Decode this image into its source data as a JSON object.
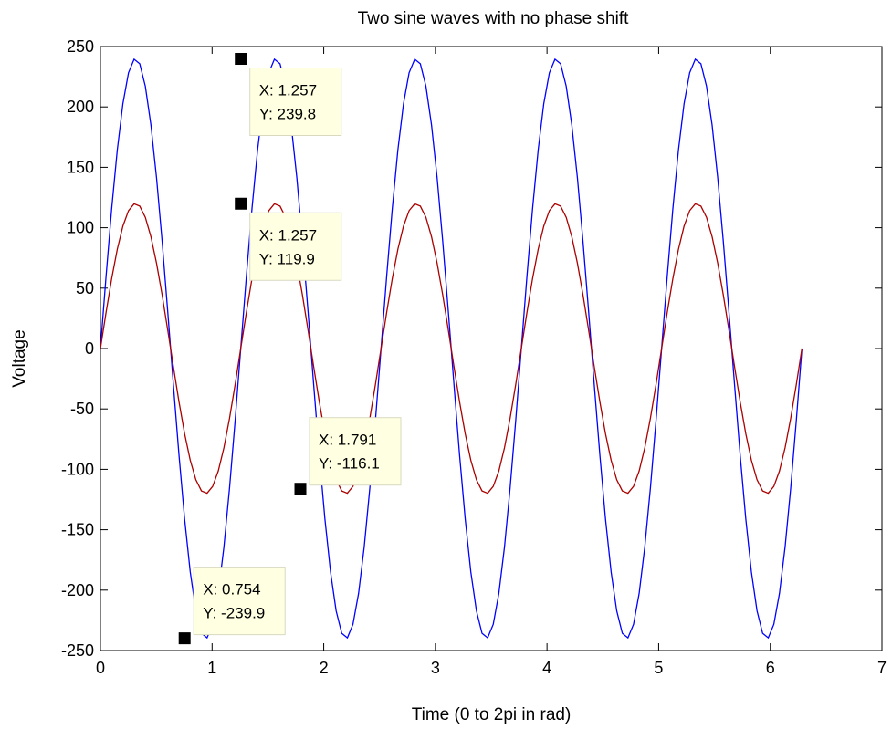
{
  "chart_data": {
    "type": "line",
    "title": "Two sine waves with no phase shift",
    "xlabel": "Time (0 to 2pi in rad)",
    "ylabel": "Voltage",
    "xlim": [
      0,
      7
    ],
    "ylim": [
      -250,
      250
    ],
    "xticks": [
      0,
      1,
      2,
      3,
      4,
      5,
      6,
      7
    ],
    "yticks": [
      -250,
      -200,
      -150,
      -100,
      -50,
      0,
      50,
      100,
      150,
      200,
      250
    ],
    "grid": false,
    "legend": "none",
    "series": [
      {
        "color": "#0000ff",
        "amplitude": 240,
        "frequency_cycles": 5,
        "x_start": 0,
        "x_end": 6.2832,
        "samples": 126
      },
      {
        "color": "#aa0000",
        "amplitude": 120,
        "frequency_cycles": 5,
        "x_start": 0,
        "x_end": 6.2832,
        "samples": 126
      }
    ],
    "datatips": [
      {
        "x": 1.257,
        "y": 239.8,
        "x_text": "X: 1.257",
        "y_text": "Y: 239.8",
        "placement": "right-below"
      },
      {
        "x": 1.257,
        "y": 119.9,
        "x_text": "X: 1.257",
        "y_text": "Y: 119.9",
        "placement": "right-below"
      },
      {
        "x": 1.791,
        "y": -116.1,
        "x_text": "X: 1.791",
        "y_text": "Y: -116.1",
        "placement": "right-above"
      },
      {
        "x": 0.754,
        "y": -239.9,
        "x_text": "X: 0.754",
        "y_text": "Y: -239.9",
        "placement": "right-above"
      }
    ]
  }
}
